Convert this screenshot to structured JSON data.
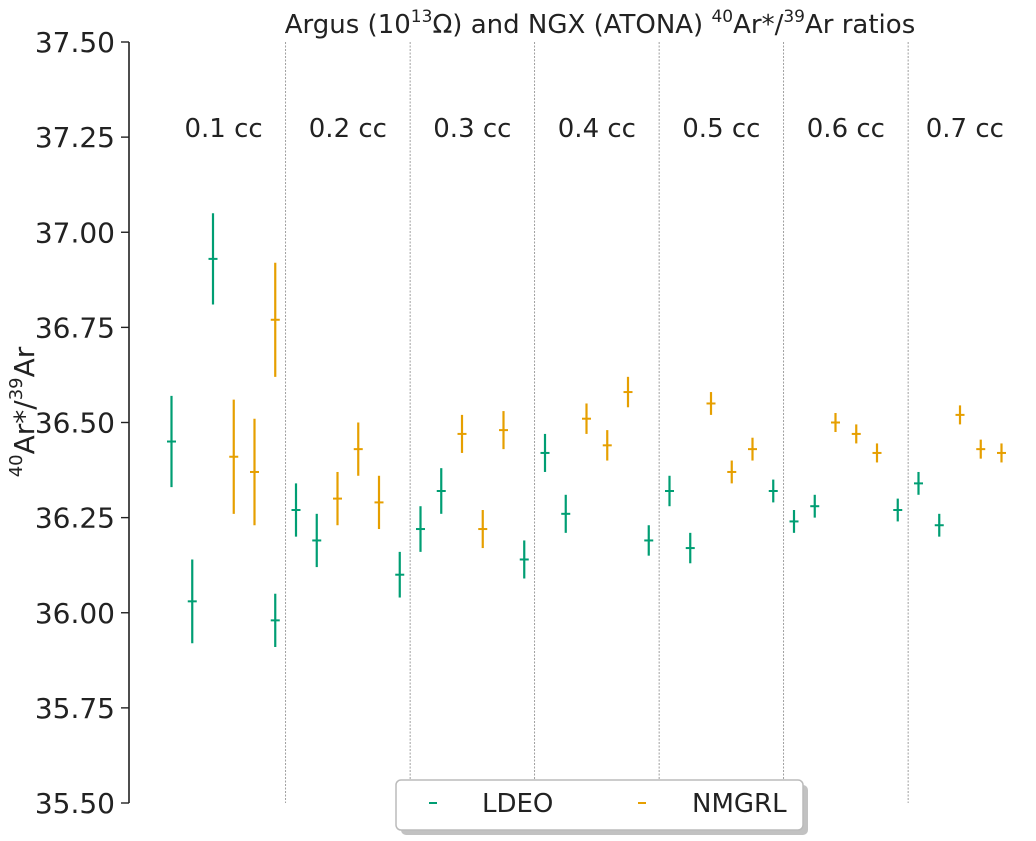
{
  "chart_data": {
    "type": "scatter",
    "title_parts": {
      "a": "Argus (10",
      "b": "13",
      "c": "Ω) and NGX (ATONA) ",
      "d": "40",
      "e": "Ar*/",
      "f": "39",
      "g": "Ar ratios"
    },
    "ylabel_parts": {
      "a": "40",
      "b": "Ar*/",
      "c": "39",
      "d": "Ar"
    },
    "ylim": [
      35.5,
      37.5
    ],
    "y_ticks": [
      "35.50",
      "35.75",
      "36.00",
      "36.25",
      "36.50",
      "36.75",
      "37.00",
      "37.25",
      "37.50"
    ],
    "grid": false,
    "legend_position": "bottom-center",
    "groups": [
      "0.1 cc",
      "0.2 cc",
      "0.3 cc",
      "0.4 cc",
      "0.5 cc",
      "0.6 cc",
      "0.7 cc"
    ],
    "series": [
      {
        "name": "LDEO",
        "color": "#009e73",
        "points": [
          {
            "x": 1,
            "y": 36.45,
            "err": 0.12
          },
          {
            "x": 2,
            "y": 36.03,
            "err": 0.11
          },
          {
            "x": 3,
            "y": 36.93,
            "err": 0.12
          },
          {
            "x": 6,
            "y": 35.98,
            "err": 0.07
          },
          {
            "x": 7,
            "y": 36.27,
            "err": 0.07
          },
          {
            "x": 8,
            "y": 36.19,
            "err": 0.07
          },
          {
            "x": 12,
            "y": 36.1,
            "err": 0.06
          },
          {
            "x": 13,
            "y": 36.22,
            "err": 0.06
          },
          {
            "x": 14,
            "y": 36.32,
            "err": 0.06
          },
          {
            "x": 18,
            "y": 36.14,
            "err": 0.05
          },
          {
            "x": 19,
            "y": 36.42,
            "err": 0.05
          },
          {
            "x": 20,
            "y": 36.26,
            "err": 0.05
          },
          {
            "x": 24,
            "y": 36.19,
            "err": 0.04
          },
          {
            "x": 25,
            "y": 36.32,
            "err": 0.04
          },
          {
            "x": 26,
            "y": 36.17,
            "err": 0.04
          },
          {
            "x": 30,
            "y": 36.32,
            "err": 0.03
          },
          {
            "x": 31,
            "y": 36.24,
            "err": 0.03
          },
          {
            "x": 32,
            "y": 36.28,
            "err": 0.03
          },
          {
            "x": 36,
            "y": 36.27,
            "err": 0.03
          },
          {
            "x": 37,
            "y": 36.34,
            "err": 0.03
          },
          {
            "x": 38,
            "y": 36.23,
            "err": 0.03
          }
        ]
      },
      {
        "name": "NMGRL",
        "color": "#e69f00",
        "points": [
          {
            "x": 4,
            "y": 36.41,
            "err": 0.15
          },
          {
            "x": 5,
            "y": 36.37,
            "err": 0.14
          },
          {
            "x": 6,
            "y": 36.77,
            "err": 0.15
          },
          {
            "x": 9,
            "y": 36.3,
            "err": 0.07
          },
          {
            "x": 10,
            "y": 36.43,
            "err": 0.07
          },
          {
            "x": 11,
            "y": 36.29,
            "err": 0.07
          },
          {
            "x": 15,
            "y": 36.47,
            "err": 0.05
          },
          {
            "x": 16,
            "y": 36.22,
            "err": 0.05
          },
          {
            "x": 17,
            "y": 36.48,
            "err": 0.05
          },
          {
            "x": 21,
            "y": 36.51,
            "err": 0.04
          },
          {
            "x": 22,
            "y": 36.44,
            "err": 0.04
          },
          {
            "x": 23,
            "y": 36.58,
            "err": 0.04
          },
          {
            "x": 27,
            "y": 36.55,
            "err": 0.03
          },
          {
            "x": 28,
            "y": 36.37,
            "err": 0.03
          },
          {
            "x": 29,
            "y": 36.43,
            "err": 0.03
          },
          {
            "x": 33,
            "y": 36.5,
            "err": 0.025
          },
          {
            "x": 34,
            "y": 36.47,
            "err": 0.025
          },
          {
            "x": 35,
            "y": 36.42,
            "err": 0.025
          },
          {
            "x": 39,
            "y": 36.52,
            "err": 0.025
          },
          {
            "x": 40,
            "y": 36.43,
            "err": 0.025
          },
          {
            "x": 41,
            "y": 36.42,
            "err": 0.025
          }
        ]
      }
    ]
  }
}
